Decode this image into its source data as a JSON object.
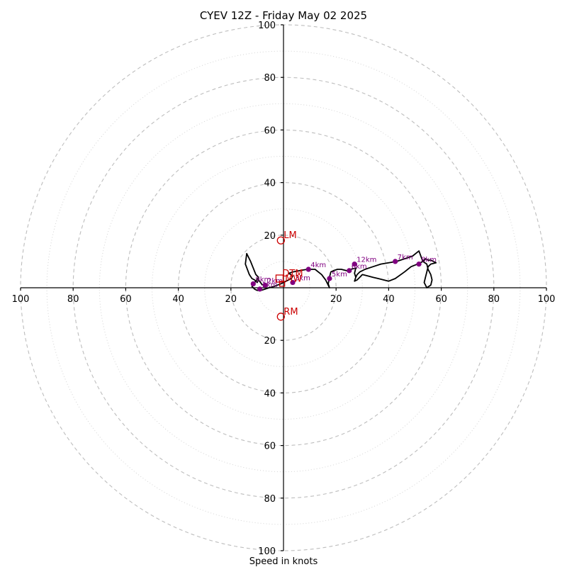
{
  "chart_data": {
    "type": "line",
    "subtype": "hodograph",
    "title": "CYEV 12Z - Friday May 02 2025",
    "xlabel": "Speed in knots",
    "ylabel": "",
    "xlim": [
      -100,
      100
    ],
    "ylim": [
      -100,
      100
    ],
    "rings_major": [
      20,
      40,
      60,
      80,
      100
    ],
    "rings_minor": [
      10,
      30,
      50,
      70,
      90
    ],
    "x_tick_labels": [
      "100",
      "80",
      "60",
      "40",
      "20",
      "20",
      "40",
      "60",
      "80",
      "100"
    ],
    "y_tick_labels": [
      "100",
      "80",
      "60",
      "40",
      "20",
      "20",
      "40",
      "60",
      "80",
      "100"
    ],
    "x_ticks": [
      -100,
      -80,
      -60,
      -40,
      -20,
      20,
      40,
      60,
      80,
      100
    ],
    "y_ticks": [
      100,
      80,
      60,
      40,
      20,
      -20,
      -40,
      -60,
      -80,
      -100
    ],
    "grid": true,
    "colors": {
      "trace": "#000000",
      "height_markers": "#800080",
      "storm_motion": "#cc0000",
      "grid": "#bdbdbd"
    },
    "series": [
      {
        "u": [
          -8,
          -9.5,
          -10,
          -11,
          -12,
          -13,
          -14.5,
          -14,
          -12.5,
          -10.5,
          -9.5,
          -10.5,
          -11.5,
          -12,
          -11,
          -10,
          -8.5,
          -7,
          -5.5,
          -3.5,
          -1,
          1,
          3,
          3.5,
          2,
          3.5,
          6,
          9,
          12,
          14.5,
          16,
          17,
          17.5,
          17,
          17.5,
          18,
          19,
          20.5,
          22,
          24,
          25.5,
          27.5,
          27,
          27.5,
          27,
          28,
          29,
          30,
          32,
          34,
          36,
          38,
          40,
          42.5,
          46,
          48.5,
          51,
          53,
          54,
          55,
          56,
          57,
          58,
          56,
          55,
          54.5,
          54,
          53.5,
          54.5,
          56,
          56.5,
          56,
          55,
          54.5,
          53,
          51.5,
          49,
          46,
          43,
          40,
          37,
          34,
          31,
          29,
          28,
          27.5
        ],
        "v": [
          1,
          3,
          2,
          3,
          3.5,
          5,
          9,
          13,
          10,
          5,
          4,
          2.5,
          1.5,
          0.5,
          -0.5,
          -1,
          -1,
          -0.5,
          0,
          0.5,
          1.5,
          2.5,
          3.5,
          4.5,
          5.5,
          6,
          6.5,
          7,
          7,
          5,
          3,
          1,
          0,
          1.5,
          4,
          6,
          6.5,
          7,
          7,
          6.5,
          7,
          7.5,
          5.5,
          4,
          2.5,
          3,
          4,
          5,
          4.5,
          4,
          3.5,
          3,
          2.5,
          3.5,
          6,
          8,
          9,
          10,
          11,
          10.5,
          10.5,
          10,
          9.5,
          9,
          8,
          6,
          4,
          2,
          0,
          1,
          3,
          5,
          7,
          9,
          10,
          14,
          12,
          11,
          10,
          9.5,
          9,
          8,
          7,
          6,
          5,
          4
        ]
      }
    ],
    "height_markers": [
      {
        "label": "1km",
        "u": -9,
        "v": -0.5
      },
      {
        "label": "2km",
        "u": -7,
        "v": 1
      },
      {
        "label": "3km",
        "u": 3.5,
        "v": 2
      },
      {
        "label": "4km",
        "u": 9.5,
        "v": 7
      },
      {
        "label": "5km",
        "u": 17.5,
        "v": 3.5
      },
      {
        "label": "6km",
        "u": 25,
        "v": 6.5
      },
      {
        "label": "7km",
        "u": 42.5,
        "v": 10
      },
      {
        "label": "8km",
        "u": 51.5,
        "v": 9
      },
      {
        "label": "9km",
        "u": -11.5,
        "v": 1.5
      },
      {
        "label": "12km",
        "u": 27,
        "v": 9
      }
    ],
    "storm_motion": [
      {
        "label": "LM",
        "u": -1,
        "v": 18
      },
      {
        "label": "MW",
        "u": -0.5,
        "v": 1.5
      },
      {
        "label": "RM",
        "u": -1,
        "v": -11
      },
      {
        "label": "DTM",
        "u": -1.5,
        "v": 3.5
      }
    ]
  }
}
